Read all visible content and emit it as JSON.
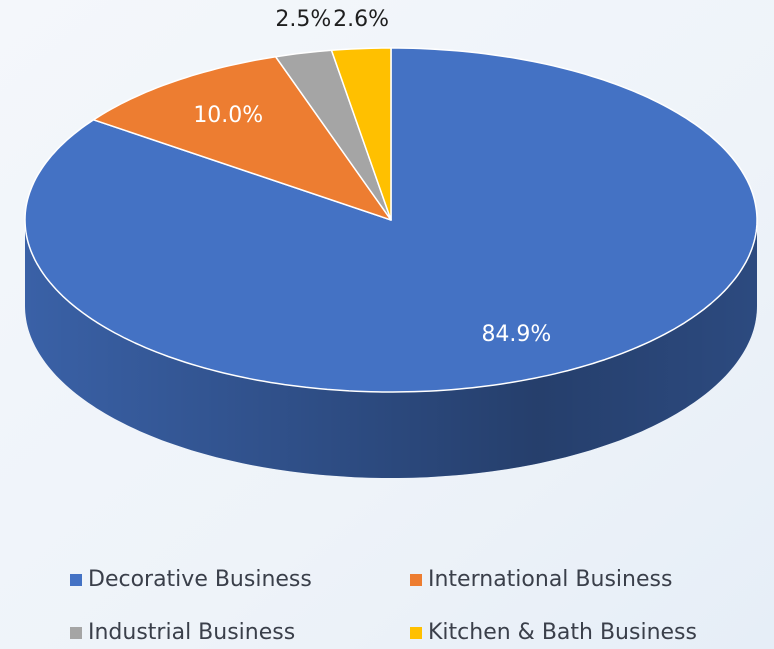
{
  "chart_data": {
    "type": "pie3d",
    "categories": [
      "Decorative Business",
      "International Business",
      "Industrial Business",
      "Kitchen & Bath Business"
    ],
    "values": [
      84.9,
      10.0,
      2.5,
      2.6
    ],
    "value_labels": [
      "84.9%",
      "10.0%",
      "2.5%",
      "2.6%"
    ],
    "colors": [
      "#4472c4",
      "#ed7d31",
      "#a5a5a5",
      "#ffc000"
    ],
    "legend": "bottom"
  }
}
